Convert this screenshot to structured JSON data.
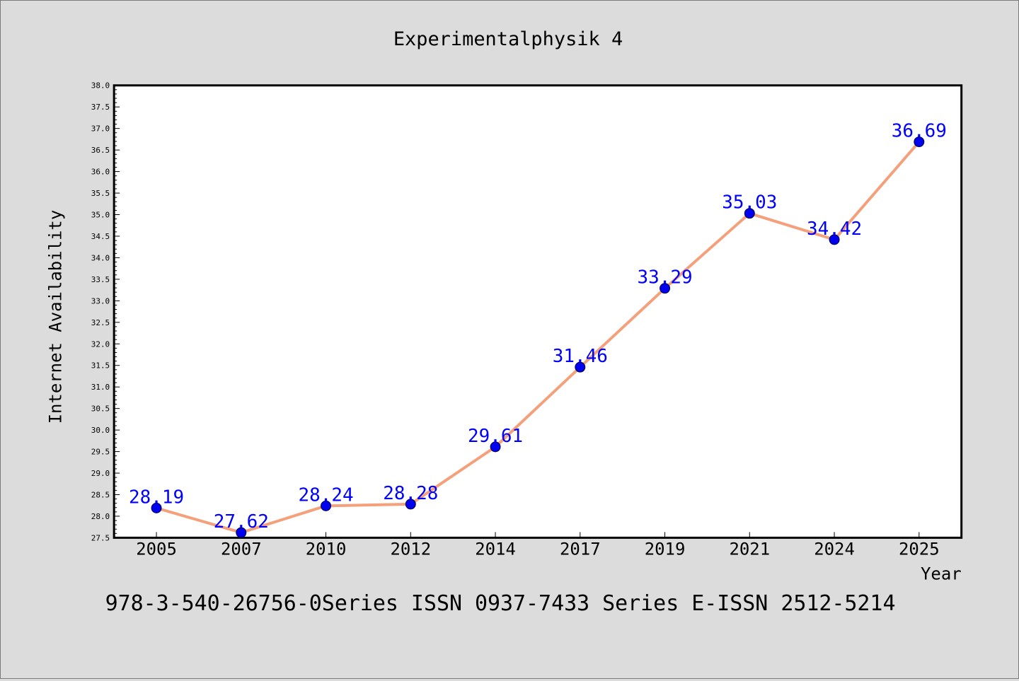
{
  "chart_data": {
    "type": "line",
    "title": "Experimentalphysik 4",
    "xlabel": "Year",
    "ylabel": "Internet Availability",
    "caption": "978-3-540-26756-0Series ISSN 0937-7433 Series E-ISSN 2512-5214",
    "categories": [
      "2005",
      "2007",
      "2010",
      "2012",
      "2014",
      "2017",
      "2019",
      "2021",
      "2024",
      "2025"
    ],
    "series": [
      {
        "values": [
          28.19,
          27.62,
          28.24,
          28.28,
          29.61,
          31.46,
          33.29,
          35.03,
          34.42,
          36.69
        ],
        "labels": [
          "28.19",
          "27.62",
          "28.24",
          "28.28",
          "29.61",
          "31.46",
          "33.29",
          "35.03",
          "34.42",
          "36.69"
        ]
      }
    ],
    "ylim": [
      27.5,
      38.0
    ],
    "ytick_step": 0.5,
    "grid": false,
    "colors": {
      "line": "#f4a07a",
      "marker": "#0000ee",
      "data_label": "#0000ff",
      "background": "#dcdcdc",
      "plot_background": "#ffffff"
    }
  }
}
